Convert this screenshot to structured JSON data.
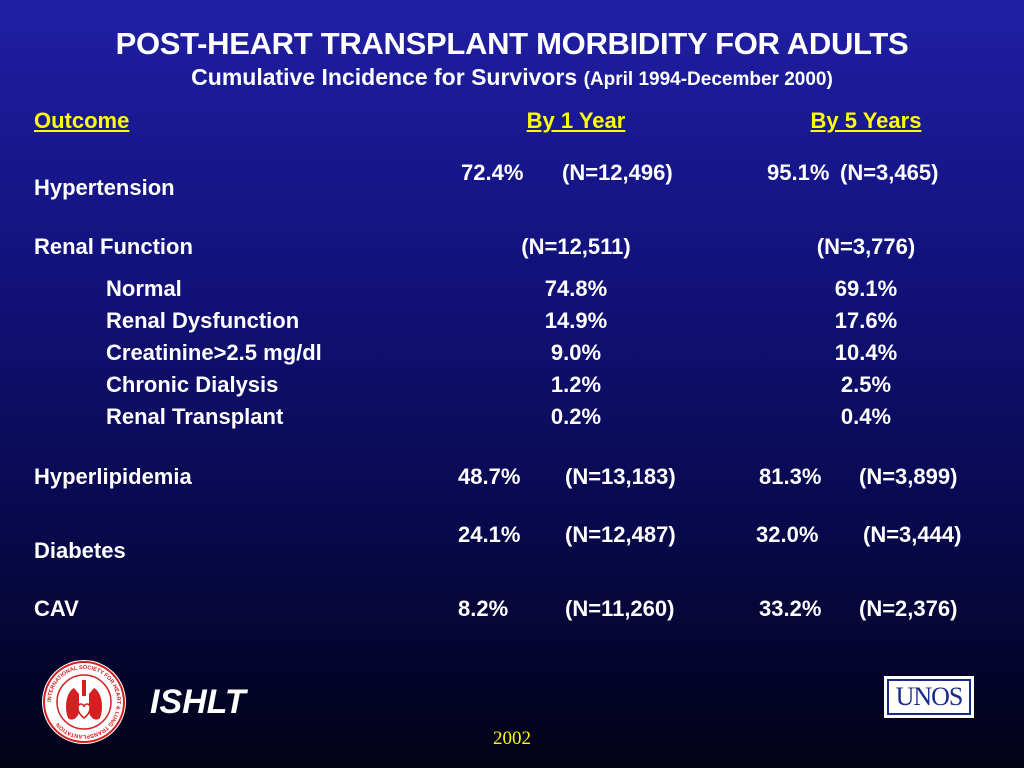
{
  "title": "POST-HEART TRANSPLANT MORBIDITY FOR ADULTS",
  "subtitle": "Cumulative Incidence for Survivors",
  "subtitle_range": "(April 1994-December 2000)",
  "headers": {
    "outcome": "Outcome",
    "year1": "By 1 Year",
    "year5": "By 5 Years"
  },
  "hypertension": {
    "label": "Hypertension",
    "y1_pct": "72.4%",
    "y1_n": "(N=12,496)",
    "y5_pct": "95.1%",
    "y5_n": "(N=3,465)"
  },
  "renal": {
    "label": "Renal Function",
    "y1_n": "(N=12,511)",
    "y5_n": "(N=3,776)",
    "rows": [
      {
        "label": "Normal",
        "y1": "74.8%",
        "y5": "69.1%"
      },
      {
        "label": "Renal Dysfunction",
        "y1": "14.9%",
        "y5": "17.6%"
      },
      {
        "label": "Creatinine>2.5 mg/dl",
        "y1": "9.0%",
        "y5": "10.4%"
      },
      {
        "label": "Chronic Dialysis",
        "y1": "1.2%",
        "y5": "2.5%"
      },
      {
        "label": "Renal Transplant",
        "y1": "0.2%",
        "y5": "0.4%"
      }
    ]
  },
  "hyperlipidemia": {
    "label": "Hyperlipidemia",
    "y1_pct": "48.7%",
    "y1_n": "(N=13,183)",
    "y5_pct": "81.3%",
    "y5_n": "(N=3,899)"
  },
  "diabetes": {
    "label": "Diabetes",
    "y1_pct": "24.1%",
    "y1_n": "(N=12,487)",
    "y5_pct": "32.0%",
    "y5_n": "(N=3,444)"
  },
  "cav": {
    "label": "CAV",
    "y1_pct": "8.2%",
    "y1_n": "(N=11,260)",
    "y5_pct": "33.2%",
    "y5_n": "(N=2,376)"
  },
  "footer": {
    "org": "ISHLT",
    "year": "2002",
    "unos_logo_text": "UNOS",
    "seal_text": "INTERNATIONAL SOCIETY FOR HEART & LUNG TRANSPLANTATION"
  },
  "colors": {
    "header": "#ffff00",
    "year": "#ffff00",
    "seal_red": "#d42020",
    "unos_blue": "#1a2a8a"
  }
}
